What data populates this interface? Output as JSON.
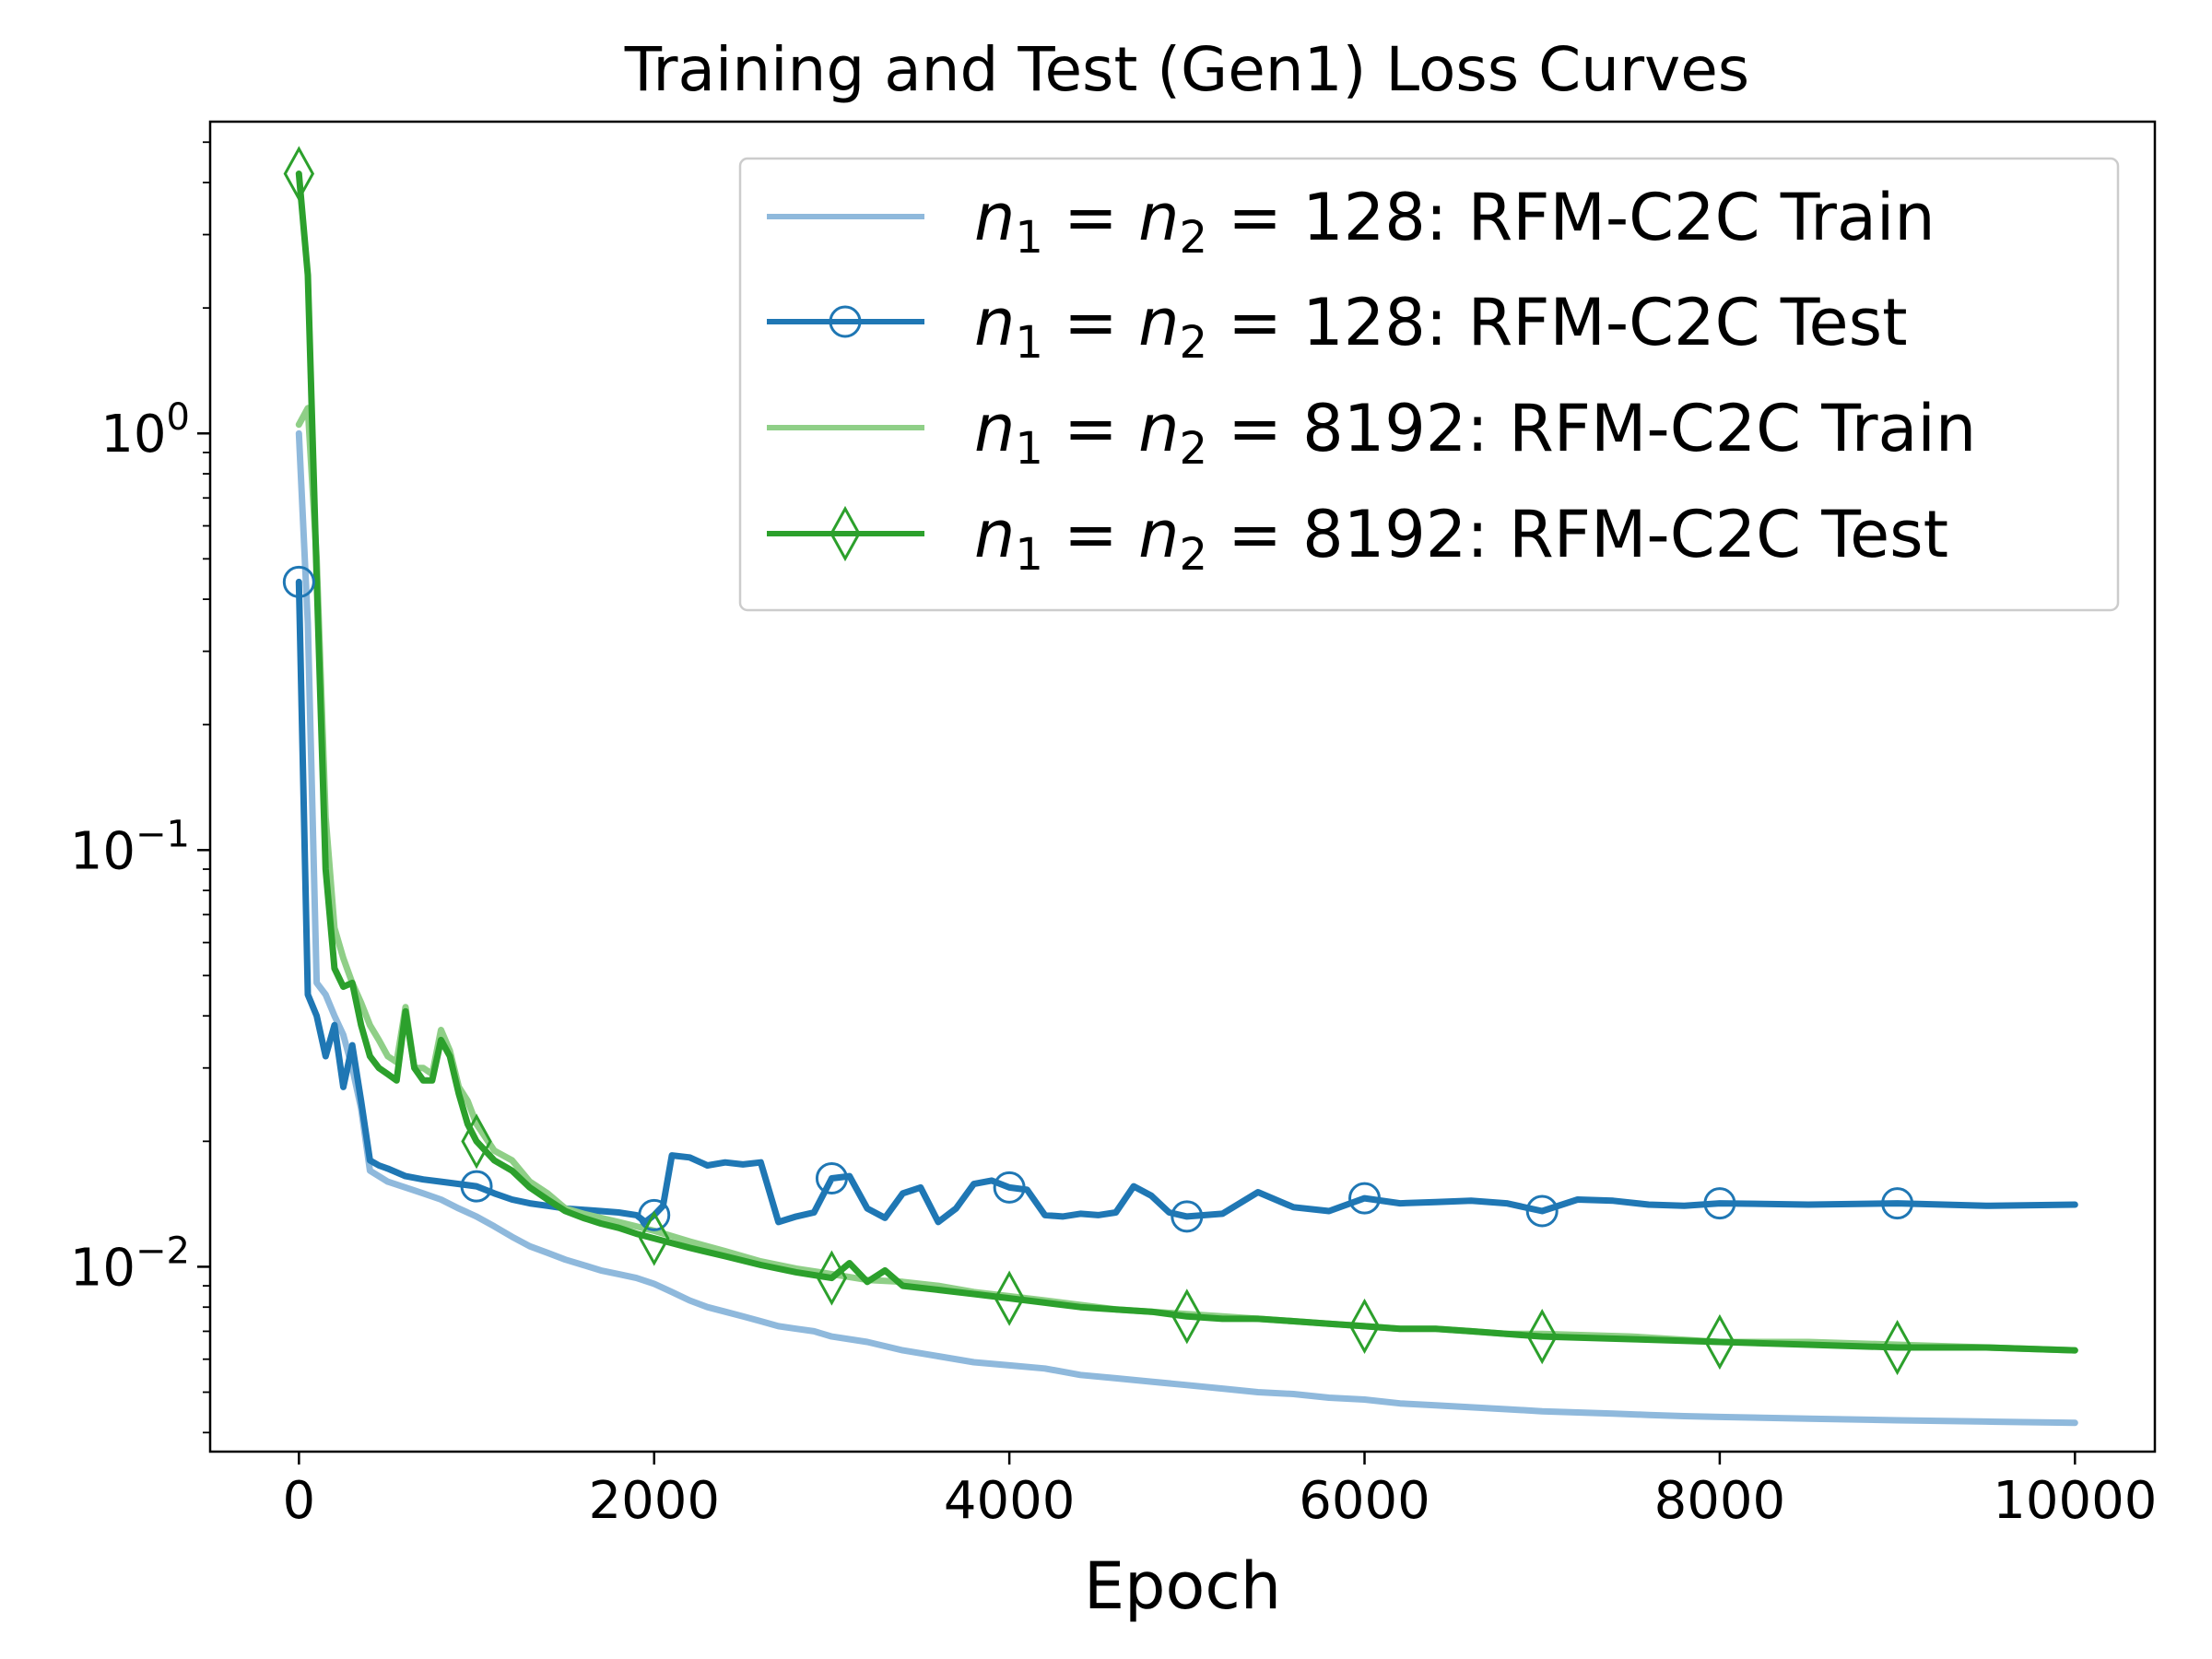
{
  "chart_data": {
    "type": "line",
    "title": "Training and Test (Gen1) Loss Curves",
    "xlabel": "Epoch",
    "ylabel": "",
    "yscale": "log",
    "xlim": [
      -500,
      10450
    ],
    "ylim": [
      0.0036,
      5.6
    ],
    "x_ticks": [
      {
        "value": 0,
        "label": "0"
      },
      {
        "value": 2000,
        "label": "2000"
      },
      {
        "value": 4000,
        "label": "4000"
      },
      {
        "value": 6000,
        "label": "6000"
      },
      {
        "value": 8000,
        "label": "8000"
      },
      {
        "value": 10000,
        "label": "10000"
      }
    ],
    "y_ticks": [
      {
        "value": 1,
        "base": "10",
        "exp": "0"
      },
      {
        "value": 0.1,
        "base": "10",
        "exp": "−1"
      },
      {
        "value": 0.01,
        "base": "10",
        "exp": "−2"
      }
    ],
    "legend": {
      "position": "top-right",
      "entries": [
        {
          "prefix": "n",
          "sub": "1",
          "mid": " = ",
          "prefix2": "n",
          "sub2": "2",
          "rest": " = 128: RFM-C2C Train"
        },
        {
          "prefix": "n",
          "sub": "1",
          "mid": " = ",
          "prefix2": "n",
          "sub2": "2",
          "rest": " = 128: RFM-C2C Test"
        },
        {
          "prefix": "n",
          "sub": "1",
          "mid": " = ",
          "prefix2": "n",
          "sub2": "2",
          "rest": " = 8192: RFM-C2C Train"
        },
        {
          "prefix": "n",
          "sub": "1",
          "mid": " = ",
          "prefix2": "n",
          "sub2": "2",
          "rest": " = 8192: RFM-C2C Test"
        }
      ]
    },
    "series": [
      {
        "name": "n1 = n2 = 128: RFM-C2C Train",
        "color": "#8fb9dc",
        "marker": "none",
        "x": [
          0,
          50,
          100,
          150,
          200,
          250,
          300,
          350,
          400,
          500,
          600,
          700,
          800,
          900,
          1000,
          1100,
          1200,
          1300,
          1400,
          1500,
          1600,
          1700,
          1800,
          1900,
          2000,
          2100,
          2200,
          2300,
          2400,
          2500,
          2600,
          2700,
          2800,
          2900,
          3000,
          3200,
          3400,
          3600,
          3800,
          4000,
          4200,
          4400,
          4600,
          4800,
          5000,
          5200,
          5400,
          5600,
          5800,
          6000,
          6200,
          6400,
          6600,
          6800,
          7000,
          7200,
          7400,
          7600,
          7800,
          8000,
          8500,
          9000,
          9500,
          10000
        ],
        "values": [
          1.0,
          0.35,
          0.048,
          0.045,
          0.04,
          0.036,
          0.03,
          0.024,
          0.017,
          0.016,
          0.0155,
          0.015,
          0.0145,
          0.0138,
          0.0132,
          0.0125,
          0.0118,
          0.0112,
          0.0108,
          0.0104,
          0.0101,
          0.0098,
          0.0096,
          0.0094,
          0.0091,
          0.0087,
          0.0083,
          0.008,
          0.0078,
          0.0076,
          0.0074,
          0.0072,
          0.0071,
          0.007,
          0.0068,
          0.0066,
          0.0063,
          0.0061,
          0.0059,
          0.0058,
          0.0057,
          0.0055,
          0.0054,
          0.0053,
          0.0052,
          0.0051,
          0.005,
          0.00495,
          0.00485,
          0.0048,
          0.0047,
          0.00465,
          0.0046,
          0.00455,
          0.0045,
          0.00447,
          0.00444,
          0.00441,
          0.00438,
          0.00436,
          0.00432,
          0.00428,
          0.00425,
          0.00422
        ]
      },
      {
        "name": "n1 = n2 = 128: RFM-C2C Test",
        "color": "#1f77b4",
        "marker": "circle",
        "marker_every": 1000,
        "x": [
          0,
          50,
          100,
          150,
          200,
          250,
          300,
          350,
          400,
          450,
          500,
          600,
          700,
          800,
          900,
          1000,
          1100,
          1200,
          1300,
          1400,
          1500,
          1600,
          1700,
          1800,
          1900,
          1950,
          2000,
          2050,
          2100,
          2200,
          2300,
          2400,
          2500,
          2600,
          2700,
          2800,
          2900,
          3000,
          3100,
          3200,
          3300,
          3400,
          3500,
          3600,
          3700,
          3800,
          3900,
          4000,
          4100,
          4200,
          4300,
          4400,
          4500,
          4600,
          4700,
          4800,
          4900,
          5000,
          5200,
          5400,
          5600,
          5800,
          6000,
          6200,
          6400,
          6600,
          6800,
          7000,
          7200,
          7400,
          7600,
          7800,
          8000,
          8500,
          9000,
          9500,
          10000
        ],
        "values": [
          0.44,
          0.045,
          0.04,
          0.032,
          0.038,
          0.027,
          0.034,
          0.025,
          0.018,
          0.0175,
          0.0172,
          0.0165,
          0.0162,
          0.016,
          0.0158,
          0.0156,
          0.015,
          0.0145,
          0.0142,
          0.014,
          0.0138,
          0.0137,
          0.0136,
          0.0135,
          0.0133,
          0.0128,
          0.0133,
          0.014,
          0.0185,
          0.0183,
          0.0175,
          0.0178,
          0.0176,
          0.0178,
          0.0128,
          0.0132,
          0.0135,
          0.0163,
          0.0165,
          0.0138,
          0.0131,
          0.015,
          0.0155,
          0.0128,
          0.0138,
          0.0158,
          0.0161,
          0.0155,
          0.0153,
          0.0133,
          0.0132,
          0.0134,
          0.0133,
          0.0135,
          0.0156,
          0.0148,
          0.0135,
          0.0132,
          0.0134,
          0.0151,
          0.0139,
          0.0136,
          0.0146,
          0.0142,
          0.0143,
          0.0144,
          0.0142,
          0.0136,
          0.0145,
          0.0144,
          0.0141,
          0.014,
          0.0142,
          0.0141,
          0.0142,
          0.014,
          0.0141
        ]
      },
      {
        "name": "n1 = n2 = 8192: RFM-C2C Train",
        "color": "#8fcf87",
        "marker": "none",
        "x": [
          0,
          50,
          100,
          150,
          200,
          250,
          300,
          350,
          400,
          450,
          500,
          550,
          600,
          650,
          700,
          750,
          800,
          850,
          900,
          950,
          1000,
          1100,
          1200,
          1300,
          1400,
          1500,
          1600,
          1700,
          1800,
          1900,
          2000,
          2200,
          2400,
          2600,
          2800,
          3000,
          3200,
          3400,
          3600,
          3800,
          4000,
          4200,
          4400,
          4600,
          4800,
          5000,
          5200,
          5400,
          5600,
          5800,
          6000,
          6200,
          6400,
          6600,
          6800,
          7000,
          7500,
          8000,
          8500,
          9000,
          9500,
          10000
        ],
        "values": [
          1.05,
          1.15,
          0.5,
          0.12,
          0.065,
          0.055,
          0.048,
          0.043,
          0.038,
          0.035,
          0.032,
          0.031,
          0.042,
          0.03,
          0.03,
          0.029,
          0.037,
          0.033,
          0.027,
          0.025,
          0.022,
          0.019,
          0.018,
          0.016,
          0.015,
          0.0138,
          0.0134,
          0.0131,
          0.0128,
          0.0125,
          0.0122,
          0.0115,
          0.0109,
          0.0103,
          0.0099,
          0.0096,
          0.0093,
          0.0092,
          0.009,
          0.0087,
          0.0085,
          0.0083,
          0.0081,
          0.0079,
          0.0078,
          0.0077,
          0.0076,
          0.0075,
          0.0074,
          0.0073,
          0.0072,
          0.0071,
          0.0071,
          0.007,
          0.0069,
          0.0069,
          0.0068,
          0.0066,
          0.0066,
          0.0065,
          0.0064,
          0.0063
        ]
      },
      {
        "name": "n1 = n2 = 8192: RFM-C2C Test",
        "color": "#2ca02c",
        "marker": "diamond",
        "marker_every": 1000,
        "x": [
          0,
          50,
          100,
          150,
          200,
          250,
          300,
          350,
          400,
          450,
          500,
          550,
          600,
          650,
          700,
          750,
          800,
          850,
          900,
          950,
          1000,
          1100,
          1200,
          1300,
          1400,
          1500,
          1600,
          1700,
          1800,
          1900,
          2000,
          2200,
          2400,
          2600,
          2800,
          3000,
          3100,
          3200,
          3300,
          3400,
          3600,
          3800,
          4000,
          4200,
          4400,
          4600,
          4800,
          5000,
          5200,
          5400,
          5600,
          5800,
          6000,
          6200,
          6400,
          6600,
          6800,
          7000,
          7500,
          8000,
          8500,
          9000,
          9500,
          10000
        ],
        "values": [
          4.2,
          2.4,
          0.45,
          0.09,
          0.052,
          0.047,
          0.048,
          0.038,
          0.032,
          0.03,
          0.029,
          0.028,
          0.041,
          0.03,
          0.028,
          0.028,
          0.035,
          0.032,
          0.026,
          0.022,
          0.02,
          0.018,
          0.017,
          0.0155,
          0.0145,
          0.0136,
          0.0131,
          0.0127,
          0.0124,
          0.012,
          0.0117,
          0.0111,
          0.0106,
          0.0101,
          0.0097,
          0.0094,
          0.0102,
          0.0092,
          0.0098,
          0.009,
          0.0088,
          0.0086,
          0.0084,
          0.0082,
          0.008,
          0.0079,
          0.0078,
          0.0076,
          0.0075,
          0.0075,
          0.0074,
          0.0073,
          0.0072,
          0.0071,
          0.0071,
          0.007,
          0.0069,
          0.0068,
          0.0067,
          0.0066,
          0.0065,
          0.0064,
          0.0064,
          0.0063
        ]
      }
    ]
  }
}
